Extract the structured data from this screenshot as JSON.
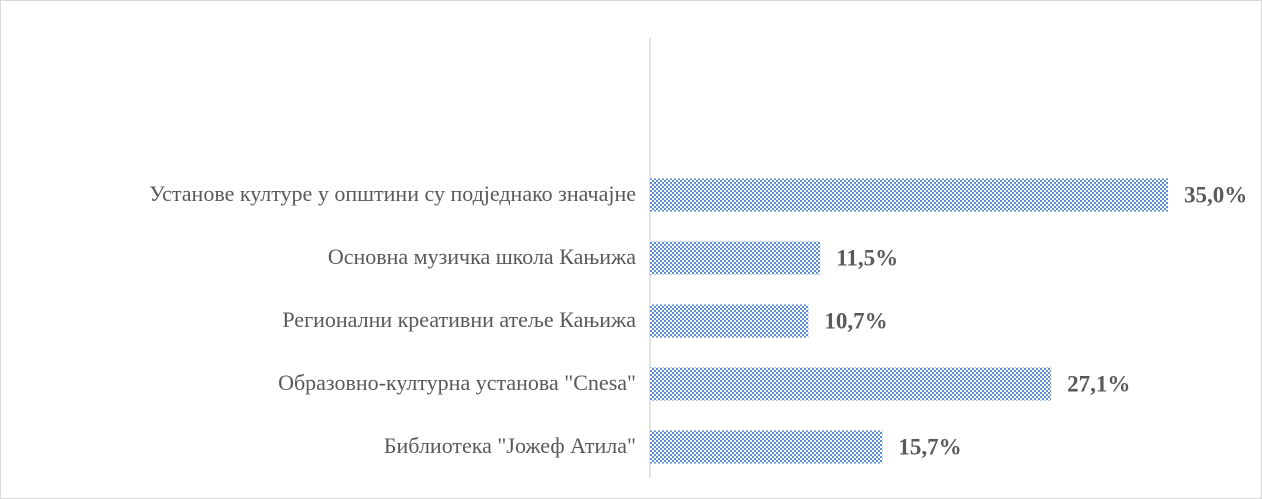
{
  "chart_data": {
    "type": "barh",
    "categories": [
      "Установе културе у општини су подједнако значајне",
      "Основна музичка школа Кањижа",
      "Регионални креативни атеље Кањижа",
      "Образовно-културна установа \"Cnesa\"",
      "Библиотека \"Јожеф Атила\""
    ],
    "values": [
      35.0,
      11.5,
      10.7,
      27.1,
      15.7
    ],
    "value_labels": [
      "35,0%",
      "11,5%",
      "10,7%",
      "27,1%",
      "15,7%"
    ],
    "color": "#5b8ed6",
    "xlim": [
      0,
      40
    ]
  }
}
